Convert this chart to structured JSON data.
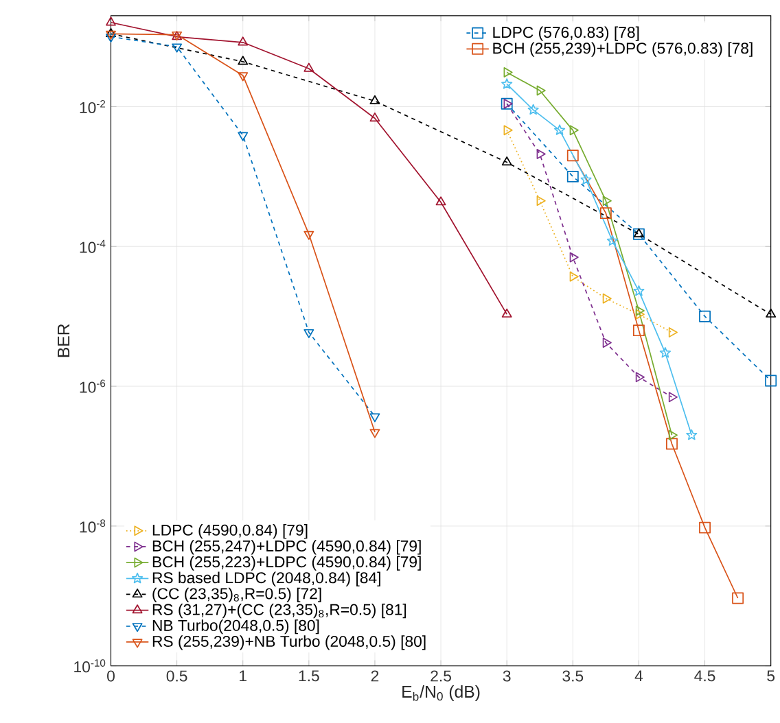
{
  "chart_data": {
    "type": "line",
    "xlabel": "E$_{b}$/N$_{0}$ (dB)",
    "ylabel": "BER",
    "log": "y",
    "grid": true,
    "legend": "top right",
    "xlim": [
      0,
      5
    ],
    "xticks": [
      0,
      0.5,
      1,
      1.5,
      2,
      2.5,
      3,
      3.5,
      4,
      4.5,
      5
    ],
    "ylim": [
      1e-10,
      0.2
    ],
    "yticks": [
      {
        "value": 1e-10,
        "label": "10$^{-10}$"
      },
      {
        "value": 1e-08,
        "label": "10$^{-8}$"
      },
      {
        "value": 1e-06,
        "label": "10$^{-6}$"
      },
      {
        "value": 0.0001,
        "label": "10$^{-4}$"
      },
      {
        "value": 0.01,
        "label": "10$^{-2}$"
      }
    ],
    "series": [
      {
        "name": "LDPC (576,0.83) [78]",
        "color": "#0072bd",
        "marker": "square",
        "line_style": "dashed",
        "x": [
          3,
          3.5,
          4,
          4.5,
          5
        ],
        "values": [
          0.011,
          0.001,
          0.00015,
          1e-05,
          1.2e-06
        ]
      },
      {
        "name": "BCH (255,239)+LDPC (576,0.83) [78]",
        "color": "#d95319",
        "marker": "square",
        "line_style": "solid",
        "x": [
          3.5,
          3.75,
          4,
          4.25,
          4.5,
          4.75
        ],
        "values": [
          0.002,
          0.0003,
          6.3e-06,
          1.5e-07,
          9.5e-09,
          9.3e-10
        ]
      },
      {
        "name": "LDPC (4590,0.84) [79]",
        "color": "#edb120",
        "marker": "triangle-right",
        "line_style": "dotted",
        "x": [
          3,
          3.25,
          3.5,
          3.75,
          4,
          4.25
        ],
        "values": [
          0.0046,
          0.00045,
          3.7e-05,
          1.8e-05,
          1.07e-05,
          5.9e-06
        ]
      },
      {
        "name": "BCH (255,247)+LDPC (4590,0.84) [79]",
        "color": "#7e2f8e",
        "marker": "triangle-right",
        "line_style": "dashed",
        "x": [
          3,
          3.25,
          3.5,
          3.75,
          4,
          4.25
        ],
        "values": [
          0.011,
          0.0021,
          7e-05,
          4.2e-06,
          1.35e-06,
          7e-07
        ]
      },
      {
        "name": "BCH (255,223)+LDPC (4590,0.84) [79]",
        "color": "#77ac30",
        "marker": "triangle-right",
        "line_style": "solid",
        "x": [
          3,
          3.25,
          3.5,
          3.75,
          4,
          4.25
        ],
        "values": [
          0.031,
          0.017,
          0.0046,
          0.00045,
          1.2e-05,
          2e-07
        ]
      },
      {
        "name": "RS based LDPC (2048,0.84) [84]",
        "color": "#4dbeee",
        "marker": "star",
        "line_style": "solid",
        "x": [
          3,
          3.2,
          3.4,
          3.6,
          3.8,
          4,
          4.2,
          4.4
        ],
        "values": [
          0.021,
          0.009,
          0.0046,
          0.0009,
          0.00012,
          2.3e-05,
          3e-06,
          2e-07
        ]
      },
      {
        "name": "(CC (23,35)$_{8}$,R=0.5) [72]",
        "color": "#000000",
        "marker": "triangle",
        "line_style": "dashed",
        "x": [
          0,
          1,
          2,
          3,
          4,
          5
        ],
        "values": [
          0.11,
          0.044,
          0.012,
          0.0016,
          0.00015,
          1.07e-05
        ]
      },
      {
        "name": "RS (31,27)+(CC (23,35)$_{8}$,R=0.5) [81]",
        "color": "#a2142f",
        "marker": "triangle",
        "line_style": "solid",
        "x": [
          0,
          0.5,
          1,
          1.5,
          2,
          2.5,
          3
        ],
        "values": [
          0.16,
          0.1,
          0.083,
          0.035,
          0.0068,
          0.00043,
          1.07e-05
        ]
      },
      {
        "name": "NB Turbo(2048,0.5) [80]",
        "color": "#0072bd",
        "marker": "triangle-down",
        "line_style": "dashed",
        "x": [
          0,
          0.5,
          1,
          1.5,
          2
        ],
        "values": [
          0.1,
          0.072,
          0.0039,
          5.9e-06,
          3.7e-07
        ]
      },
      {
        "name": "RS (255,239)+NB Turbo (2048,0.5) [80]",
        "color": "#d95319",
        "marker": "triangle-down",
        "line_style": "solid",
        "x": [
          0,
          0.5,
          1,
          1.5,
          2
        ],
        "values": [
          0.11,
          0.107,
          0.028,
          0.00015,
          2.2e-07
        ]
      }
    ]
  }
}
